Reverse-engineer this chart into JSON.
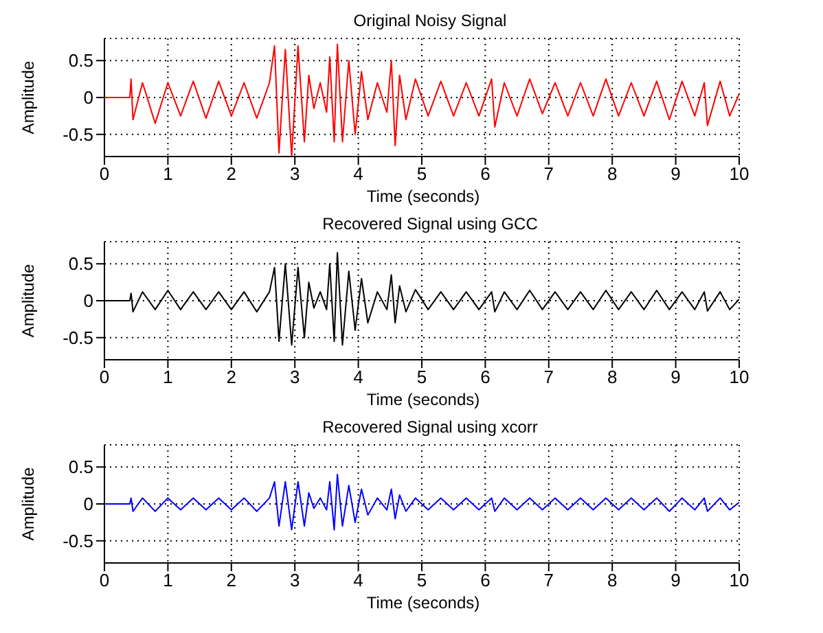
{
  "chart_data": [
    {
      "type": "line",
      "title": "Original Noisy Signal",
      "xlabel": "Time (seconds)",
      "ylabel": "Amplitude",
      "xlim": [
        0,
        10
      ],
      "ylim": [
        -0.8,
        0.8
      ],
      "xticks": [
        0,
        1,
        2,
        3,
        4,
        5,
        6,
        7,
        8,
        9,
        10
      ],
      "yticks": [
        -0.5,
        0,
        0.5
      ],
      "grid": true,
      "marker": "none",
      "x": [
        0,
        0.4,
        0.42,
        0.45,
        0.6,
        0.8,
        1.0,
        1.2,
        1.4,
        1.6,
        1.8,
        2.0,
        2.2,
        2.4,
        2.6,
        2.68,
        2.75,
        2.85,
        2.95,
        3.05,
        3.15,
        3.22,
        3.3,
        3.4,
        3.5,
        3.55,
        3.62,
        3.67,
        3.75,
        3.85,
        3.95,
        4.05,
        4.15,
        4.3,
        4.45,
        4.52,
        4.58,
        4.65,
        4.75,
        4.9,
        5.1,
        5.3,
        5.5,
        5.7,
        5.9,
        6.1,
        6.15,
        6.3,
        6.5,
        6.7,
        6.9,
        7.1,
        7.3,
        7.5,
        7.7,
        7.9,
        8.1,
        8.3,
        8.5,
        8.7,
        8.9,
        9.1,
        9.3,
        9.45,
        9.5,
        9.7,
        9.85,
        10
      ],
      "series": [
        {
          "color": "#ff0000",
          "values": [
            0,
            0,
            0.25,
            -0.3,
            0.2,
            -0.35,
            0.2,
            -0.25,
            0.22,
            -0.28,
            0.22,
            -0.25,
            0.2,
            -0.28,
            0.2,
            0.7,
            -0.75,
            0.65,
            -0.8,
            0.7,
            -0.6,
            0.3,
            -0.15,
            0.2,
            -0.2,
            0.55,
            -0.6,
            0.72,
            -0.6,
            0.5,
            -0.5,
            0.35,
            -0.3,
            0.2,
            -0.2,
            0.5,
            -0.65,
            0.3,
            -0.3,
            0.25,
            -0.25,
            0.22,
            -0.25,
            0.2,
            -0.25,
            0.25,
            -0.4,
            0.2,
            -0.25,
            0.25,
            -0.22,
            0.2,
            -0.25,
            0.2,
            -0.25,
            0.25,
            -0.25,
            0.2,
            -0.25,
            0.22,
            -0.3,
            0.22,
            -0.25,
            0.2,
            -0.38,
            0.22,
            -0.25,
            0.05
          ]
        }
      ]
    },
    {
      "type": "line",
      "title": "Recovered Signal using GCC",
      "xlabel": "Time (seconds)",
      "ylabel": "Amplitude",
      "xlim": [
        0,
        10
      ],
      "ylim": [
        -0.8,
        0.8
      ],
      "xticks": [
        0,
        1,
        2,
        3,
        4,
        5,
        6,
        7,
        8,
        9,
        10
      ],
      "yticks": [
        -0.5,
        0,
        0.5
      ],
      "grid": true,
      "marker": "none",
      "x": [
        0,
        0.4,
        0.42,
        0.45,
        0.6,
        0.8,
        1.0,
        1.2,
        1.4,
        1.6,
        1.8,
        2.0,
        2.2,
        2.4,
        2.6,
        2.68,
        2.75,
        2.85,
        2.95,
        3.05,
        3.15,
        3.22,
        3.3,
        3.4,
        3.5,
        3.55,
        3.62,
        3.67,
        3.75,
        3.85,
        3.95,
        4.05,
        4.15,
        4.3,
        4.45,
        4.52,
        4.58,
        4.65,
        4.75,
        4.9,
        5.1,
        5.3,
        5.5,
        5.7,
        5.9,
        6.1,
        6.15,
        6.3,
        6.5,
        6.7,
        6.9,
        7.1,
        7.3,
        7.5,
        7.7,
        7.9,
        8.1,
        8.3,
        8.5,
        8.7,
        8.9,
        9.1,
        9.3,
        9.45,
        9.5,
        9.7,
        9.85,
        10
      ],
      "series": [
        {
          "color": "#000000",
          "values": [
            0,
            0,
            0.1,
            -0.15,
            0.12,
            -0.12,
            0.14,
            -0.12,
            0.12,
            -0.12,
            0.12,
            -0.12,
            0.12,
            -0.15,
            0.12,
            0.45,
            -0.55,
            0.5,
            -0.6,
            0.45,
            -0.5,
            0.25,
            -0.1,
            0.12,
            -0.12,
            0.5,
            -0.55,
            0.65,
            -0.6,
            0.4,
            -0.4,
            0.3,
            -0.3,
            0.12,
            -0.12,
            0.35,
            -0.3,
            0.2,
            -0.15,
            0.15,
            -0.12,
            0.12,
            -0.12,
            0.12,
            -0.12,
            0.12,
            -0.15,
            0.12,
            -0.12,
            0.14,
            -0.12,
            0.12,
            -0.12,
            0.12,
            -0.12,
            0.14,
            -0.12,
            0.12,
            -0.12,
            0.14,
            -0.12,
            0.12,
            -0.12,
            0.12,
            -0.14,
            0.12,
            -0.12,
            0.02
          ]
        }
      ]
    },
    {
      "type": "line",
      "title": "Recovered Signal using xcorr",
      "xlabel": "Time (seconds)",
      "ylabel": "Amplitude",
      "xlim": [
        0,
        10
      ],
      "ylim": [
        -0.8,
        0.8
      ],
      "xticks": [
        0,
        1,
        2,
        3,
        4,
        5,
        6,
        7,
        8,
        9,
        10
      ],
      "yticks": [
        -0.5,
        0,
        0.5
      ],
      "grid": true,
      "marker": "none",
      "x": [
        0,
        0.4,
        0.42,
        0.45,
        0.6,
        0.8,
        1.0,
        1.2,
        1.4,
        1.6,
        1.8,
        2.0,
        2.2,
        2.4,
        2.6,
        2.68,
        2.75,
        2.85,
        2.95,
        3.05,
        3.15,
        3.22,
        3.3,
        3.4,
        3.5,
        3.55,
        3.62,
        3.67,
        3.75,
        3.85,
        3.95,
        4.05,
        4.15,
        4.3,
        4.45,
        4.52,
        4.58,
        4.65,
        4.75,
        4.9,
        5.1,
        5.3,
        5.5,
        5.7,
        5.9,
        6.1,
        6.15,
        6.3,
        6.5,
        6.7,
        6.9,
        7.1,
        7.3,
        7.5,
        7.7,
        7.9,
        8.1,
        8.3,
        8.5,
        8.7,
        8.9,
        9.1,
        9.3,
        9.45,
        9.5,
        9.7,
        9.85,
        10
      ],
      "series": [
        {
          "color": "#0000ff",
          "values": [
            0,
            0,
            0.08,
            -0.1,
            0.08,
            -0.1,
            0.08,
            -0.08,
            0.08,
            -0.08,
            0.08,
            -0.08,
            0.08,
            -0.1,
            0.08,
            0.3,
            -0.3,
            0.3,
            -0.35,
            0.3,
            -0.3,
            0.15,
            -0.06,
            0.08,
            -0.08,
            0.3,
            -0.35,
            0.4,
            -0.3,
            0.25,
            -0.25,
            0.2,
            -0.15,
            0.08,
            -0.08,
            0.2,
            -0.2,
            0.12,
            -0.1,
            0.08,
            -0.08,
            0.08,
            -0.08,
            0.08,
            -0.08,
            0.08,
            -0.1,
            0.08,
            -0.08,
            0.08,
            -0.08,
            0.08,
            -0.08,
            0.08,
            -0.08,
            0.08,
            -0.08,
            0.08,
            -0.08,
            0.08,
            -0.1,
            0.08,
            -0.08,
            0.08,
            -0.1,
            0.08,
            -0.08,
            0.02
          ]
        }
      ]
    }
  ]
}
